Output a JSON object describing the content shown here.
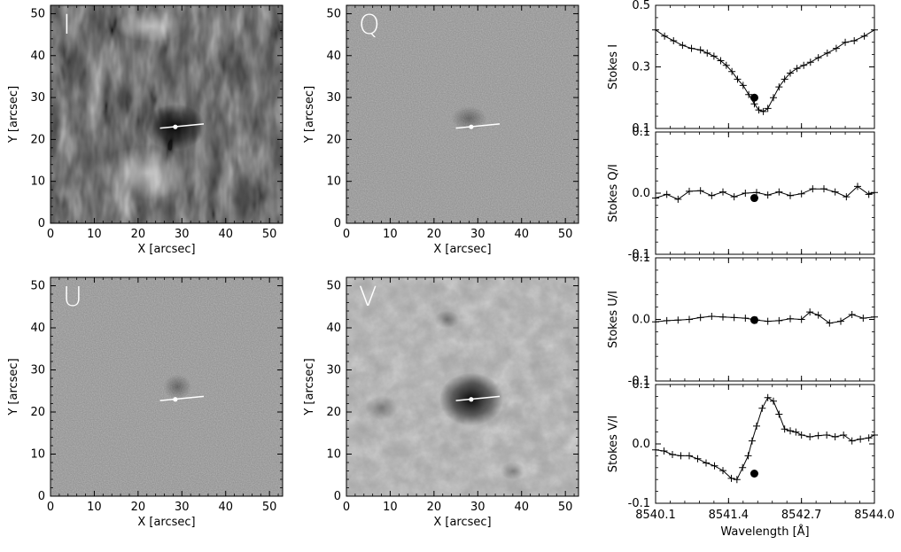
{
  "chart_data": [
    {
      "type": "heatmap",
      "panel": "I",
      "label": "I",
      "xlabel": "X [arcsec]",
      "ylabel": "Y [arcsec]",
      "xlim": [
        0,
        53
      ],
      "ylim": [
        0,
        52
      ],
      "xticks": [
        0,
        10,
        20,
        30,
        40,
        50
      ],
      "yticks": [
        0,
        10,
        20,
        30,
        40,
        50
      ],
      "marker": {
        "x": 28.5,
        "y": 23
      },
      "slit": {
        "x1": 25,
        "y1": 22.7,
        "x2": 35,
        "y2": 23.7
      },
      "colormap": "gray",
      "base_color": "#3d3d3d"
    },
    {
      "type": "heatmap",
      "panel": "Q",
      "label": "Q",
      "xlabel": "X [arcsec]",
      "ylabel": "Y [arcsec]",
      "xlim": [
        0,
        53
      ],
      "ylim": [
        0,
        52
      ],
      "xticks": [
        0,
        10,
        20,
        30,
        40,
        50
      ],
      "yticks": [
        0,
        10,
        20,
        30,
        40,
        50
      ],
      "marker": {
        "x": 28.5,
        "y": 23
      },
      "slit": {
        "x1": 25,
        "y1": 22.7,
        "x2": 35,
        "y2": 23.7
      },
      "colormap": "gray",
      "base_color": "#8a8a8a"
    },
    {
      "type": "heatmap",
      "panel": "U",
      "label": "U",
      "xlabel": "X [arcsec]",
      "ylabel": "Y [arcsec]",
      "xlim": [
        0,
        53
      ],
      "ylim": [
        0,
        52
      ],
      "xticks": [
        0,
        10,
        20,
        30,
        40,
        50
      ],
      "yticks": [
        0,
        10,
        20,
        30,
        40,
        50
      ],
      "marker": {
        "x": 28.5,
        "y": 23
      },
      "slit": {
        "x1": 25,
        "y1": 22.7,
        "x2": 35,
        "y2": 23.7
      },
      "colormap": "gray",
      "base_color": "#8a8a8a"
    },
    {
      "type": "heatmap",
      "panel": "V",
      "label": "V",
      "xlabel": "X [arcsec]",
      "ylabel": "Y [arcsec]",
      "xlim": [
        0,
        53
      ],
      "ylim": [
        0,
        52
      ],
      "xticks": [
        0,
        10,
        20,
        30,
        40,
        50
      ],
      "yticks": [
        0,
        10,
        20,
        30,
        40,
        50
      ],
      "marker": {
        "x": 28.5,
        "y": 23
      },
      "slit": {
        "x1": 25,
        "y1": 22.7,
        "x2": 35,
        "y2": 23.7
      },
      "colormap": "gray",
      "base_color": "#a2a2a2"
    },
    {
      "type": "line",
      "panel": "Stokes I",
      "ylabel": "Stokes I",
      "xlim": [
        8540.1,
        8544.0
      ],
      "ylim": [
        0.1,
        0.5
      ],
      "yticks": [
        0.1,
        0.3,
        0.5
      ],
      "ytick_labels": [
        "0.1",
        "0.3",
        "0.5"
      ],
      "x": [
        8540.1,
        8540.26,
        8540.42,
        8540.58,
        8540.74,
        8540.9,
        8541.02,
        8541.14,
        8541.26,
        8541.36,
        8541.46,
        8541.56,
        8541.66,
        8541.76,
        8541.86,
        8541.94,
        8542.02,
        8542.1,
        8542.2,
        8542.3,
        8542.4,
        8542.5,
        8542.62,
        8542.74,
        8542.86,
        8543.0,
        8543.16,
        8543.32,
        8543.48,
        8543.64,
        8543.82,
        8544.0
      ],
      "y": [
        0.42,
        0.4,
        0.385,
        0.37,
        0.36,
        0.355,
        0.345,
        0.335,
        0.32,
        0.305,
        0.285,
        0.26,
        0.24,
        0.21,
        0.18,
        0.16,
        0.155,
        0.165,
        0.2,
        0.235,
        0.26,
        0.28,
        0.295,
        0.305,
        0.315,
        0.33,
        0.345,
        0.36,
        0.38,
        0.385,
        0.4,
        0.42
      ],
      "highlight": {
        "x": 8541.86,
        "y": 0.2
      }
    },
    {
      "type": "line",
      "panel": "Stokes Q/I",
      "ylabel": "Stokes Q/I",
      "xlim": [
        8540.1,
        8544.0
      ],
      "ylim": [
        -0.1,
        0.1
      ],
      "yticks": [
        -0.1,
        0.0,
        0.1
      ],
      "ytick_labels": [
        "-0.1",
        "0.0",
        "0.1"
      ],
      "x": [
        8540.1,
        8540.3,
        8540.5,
        8540.7,
        8540.9,
        8541.1,
        8541.3,
        8541.5,
        8541.7,
        8541.9,
        8542.1,
        8542.3,
        8542.5,
        8542.7,
        8542.9,
        8543.1,
        8543.3,
        8543.5,
        8543.7,
        8543.9,
        8544.0
      ],
      "y": [
        -0.008,
        -0.002,
        -0.01,
        0.003,
        0.004,
        -0.004,
        0.002,
        -0.006,
        0.0,
        0.001,
        -0.003,
        0.002,
        -0.004,
        -0.001,
        0.007,
        0.007,
        0.002,
        -0.006,
        0.011,
        -0.002,
        0.001
      ],
      "highlight": {
        "x": 8541.86,
        "y": -0.008
      }
    },
    {
      "type": "line",
      "panel": "Stokes U/I",
      "ylabel": "Stokes U/I",
      "xlim": [
        8540.1,
        8544.0
      ],
      "ylim": [
        -0.1,
        0.1
      ],
      "yticks": [
        -0.1,
        0.0,
        0.1
      ],
      "ytick_labels": [
        "-0.1",
        "0.0",
        "0.1"
      ],
      "x": [
        8540.1,
        8540.3,
        8540.5,
        8540.7,
        8540.9,
        8541.1,
        8541.3,
        8541.5,
        8541.7,
        8541.9,
        8542.1,
        8542.3,
        8542.5,
        8542.7,
        8542.85,
        8543.0,
        8543.2,
        8543.4,
        8543.6,
        8543.8,
        8544.0
      ],
      "y": [
        -0.004,
        -0.002,
        -0.001,
        0.0,
        0.003,
        0.005,
        0.004,
        0.003,
        0.002,
        -0.001,
        -0.003,
        -0.002,
        0.001,
        0.0,
        0.012,
        0.007,
        -0.006,
        -0.003,
        0.008,
        0.002,
        0.004
      ],
      "highlight": {
        "x": 8541.86,
        "y": -0.001
      }
    },
    {
      "type": "line",
      "panel": "Stokes V/I",
      "ylabel": "Stokes V/I",
      "xlabel": "Wavelength [Å]",
      "xlim": [
        8540.1,
        8544.0
      ],
      "ylim": [
        -0.1,
        0.1
      ],
      "yticks": [
        -0.1,
        0.0,
        0.1
      ],
      "ytick_labels": [
        "-0.1",
        "0.0",
        "0.1"
      ],
      "xticks": [
        8540.1,
        8541.4,
        8542.7,
        8544.0
      ],
      "xtick_labels": [
        "8540.1",
        "8541.4",
        "8542.7",
        "8544.0"
      ],
      "x": [
        8540.1,
        8540.25,
        8540.4,
        8540.55,
        8540.7,
        8540.85,
        8541.0,
        8541.15,
        8541.3,
        8541.45,
        8541.55,
        8541.65,
        8541.75,
        8541.82,
        8541.9,
        8542.0,
        8542.1,
        8542.2,
        8542.3,
        8542.4,
        8542.5,
        8542.6,
        8542.7,
        8542.85,
        8543.0,
        8543.15,
        8543.3,
        8543.45,
        8543.6,
        8543.75,
        8543.9,
        8544.0
      ],
      "y": [
        -0.01,
        -0.012,
        -0.018,
        -0.02,
        -0.02,
        -0.025,
        -0.032,
        -0.037,
        -0.045,
        -0.058,
        -0.06,
        -0.04,
        -0.02,
        0.005,
        0.03,
        0.06,
        0.078,
        0.072,
        0.05,
        0.025,
        0.022,
        0.02,
        0.015,
        0.012,
        0.014,
        0.015,
        0.012,
        0.015,
        0.005,
        0.008,
        0.01,
        0.015
      ],
      "highlight": {
        "x": 8541.86,
        "y": -0.05
      }
    }
  ]
}
